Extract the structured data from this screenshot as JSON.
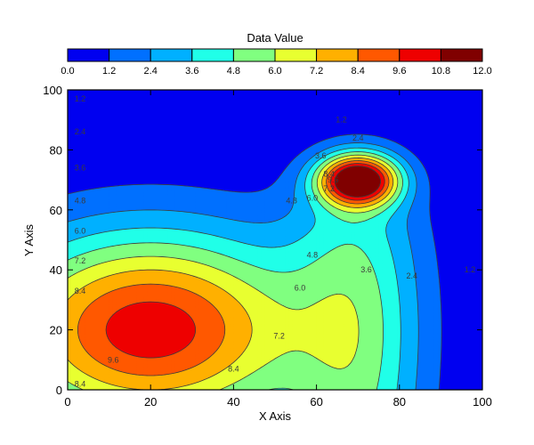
{
  "chart_data": {
    "type": "heatmap",
    "subtype": "filled-contour",
    "colorbar_title": "Data Value",
    "xlabel": "X Axis",
    "ylabel": "Y Axis",
    "xlim": [
      0,
      100
    ],
    "ylim": [
      0,
      100
    ],
    "x_ticks": [
      "0",
      "20",
      "40",
      "60",
      "80",
      "100"
    ],
    "y_ticks": [
      "0",
      "20",
      "40",
      "60",
      "80",
      "100"
    ],
    "levels": [
      0.0,
      1.2,
      2.4,
      3.6,
      4.8,
      6.0,
      7.2,
      8.4,
      9.6,
      10.8,
      12.0
    ],
    "level_labels": [
      "0.0",
      "1.2",
      "2.4",
      "3.6",
      "4.8",
      "6.0",
      "7.2",
      "8.4",
      "9.6",
      "10.8",
      "12.0"
    ],
    "level_colors": [
      "#0000f0",
      "#0070ff",
      "#00b0ff",
      "#20ffe8",
      "#80ff80",
      "#e8ff30",
      "#ffb000",
      "#ff5800",
      "#ee0000",
      "#800000"
    ],
    "peaks": [
      {
        "x": 20,
        "y": 20,
        "value": 10.4
      },
      {
        "x": 70,
        "y": 70,
        "value": 12.0
      }
    ],
    "contour_labels": [
      {
        "text": "1.2",
        "x": 3,
        "y": 97
      },
      {
        "text": "1.2",
        "x": 66,
        "y": 90
      },
      {
        "text": "1.2",
        "x": 97,
        "y": 40
      },
      {
        "text": "2.4",
        "x": 3,
        "y": 86
      },
      {
        "text": "2.4",
        "x": 70,
        "y": 84
      },
      {
        "text": "2.4",
        "x": 83,
        "y": 38
      },
      {
        "text": "3.6",
        "x": 3,
        "y": 74
      },
      {
        "text": "3.6",
        "x": 61,
        "y": 78
      },
      {
        "text": "3.6",
        "x": 72,
        "y": 40
      },
      {
        "text": "4.8",
        "x": 3,
        "y": 63
      },
      {
        "text": "4.8",
        "x": 54,
        "y": 63
      },
      {
        "text": "4.8",
        "x": 59,
        "y": 45
      },
      {
        "text": "6.0",
        "x": 3,
        "y": 53
      },
      {
        "text": "6.0",
        "x": 59,
        "y": 64
      },
      {
        "text": "6.0",
        "x": 56,
        "y": 34
      },
      {
        "text": "7.2",
        "x": 3,
        "y": 43
      },
      {
        "text": "7.2",
        "x": 63,
        "y": 67
      },
      {
        "text": "7.2",
        "x": 51,
        "y": 18
      },
      {
        "text": "8.4",
        "x": 3,
        "y": 33
      },
      {
        "text": "8.4",
        "x": 3,
        "y": 2
      },
      {
        "text": "8.4",
        "x": 40,
        "y": 7
      },
      {
        "text": "8.4",
        "x": 63,
        "y": 72
      },
      {
        "text": "9.6",
        "x": 11,
        "y": 10
      },
      {
        "text": "9.6",
        "x": 64,
        "y": 70
      }
    ]
  }
}
